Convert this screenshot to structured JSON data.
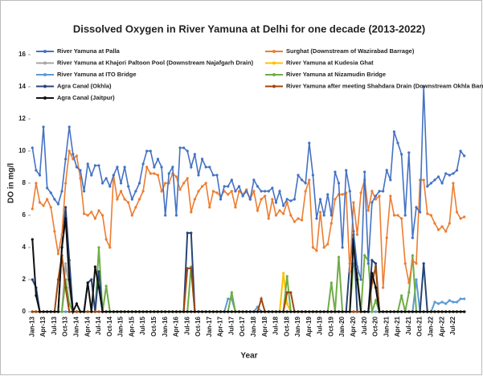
{
  "chart_data": {
    "type": "line",
    "title": "Dissolved Oxygen in River Yamuna at Delhi for one decade (2013-2022)",
    "xlabel": "Year",
    "ylabel": "DO in mg/l",
    "ylim": [
      0,
      16
    ],
    "yticks": [
      0,
      2,
      4,
      6,
      8,
      10,
      12,
      14,
      16
    ],
    "grid": false,
    "categories": [
      "Jan-13",
      null,
      null,
      "Apr-13",
      null,
      null,
      "Jul-13",
      null,
      null,
      "Oct-13",
      null,
      null,
      "Jan-14",
      null,
      null,
      "Apr-14",
      null,
      null,
      "Jul-14",
      null,
      null,
      "Oct-14",
      null,
      null,
      "Jan-15",
      null,
      null,
      "Apr-15",
      null,
      null,
      "Jul-15",
      null,
      null,
      "Oct-15",
      null,
      null,
      "Jan-16",
      null,
      null,
      "Apr-16",
      null,
      null,
      "Jul-16",
      null,
      null,
      "Oct-16",
      null,
      null,
      "Jan-17",
      null,
      null,
      "Apr-17",
      null,
      null,
      "Jul-17",
      null,
      null,
      "Oct-17",
      null,
      null,
      "Jan-18",
      null,
      null,
      "Apr-18",
      null,
      null,
      "Jul-18",
      null,
      null,
      "Oct-18",
      null,
      null,
      "Jan-19",
      null,
      null,
      "Apr-19",
      null,
      null,
      "Jul-19",
      null,
      null,
      "Oct-19",
      null,
      null,
      "Jan-20",
      null,
      null,
      "Apr-20",
      null,
      null,
      "Jul-20",
      null,
      null,
      "Oct-20",
      null,
      null,
      "Jan-21",
      null,
      null,
      "Apr-21",
      null,
      null,
      "Jul-21",
      null,
      null,
      "Oct-21",
      null,
      null,
      "Jan-22",
      null,
      null,
      "Apr-22",
      null,
      null,
      "Jul-22",
      null,
      null,
      null
    ],
    "series": [
      {
        "name": "River Yamuna at Palla",
        "color": "#4472c4",
        "values": [
          10.2,
          8.8,
          8.5,
          11.5,
          7.7,
          7.4,
          7.0,
          6.7,
          7.5,
          9.5,
          11.5,
          9.8,
          9.0,
          8.8,
          7.5,
          9.2,
          8.5,
          9.1,
          9.1,
          8.0,
          8.3,
          7.8,
          8.5,
          9.0,
          8.0,
          9.0,
          7.8,
          7.0,
          7.5,
          8.0,
          9.2,
          10.0,
          10.0,
          9.0,
          9.5,
          9.0,
          6.0,
          8.6,
          9.0,
          6.0,
          10.2,
          10.2,
          10.0,
          9.0,
          9.8,
          8.5,
          9.5,
          9.0,
          9.0,
          8.5,
          8.5,
          7.0,
          7.8,
          7.8,
          8.2,
          7.5,
          7.8,
          7.2,
          7.5,
          7.0,
          8.2,
          7.8,
          7.5,
          7.5,
          7.5,
          7.7,
          6.8,
          7.5,
          6.6,
          7.0,
          6.9,
          7.0,
          8.5,
          8.2,
          8.0,
          10.5,
          8.5,
          5.8,
          7.0,
          6.0,
          7.3,
          6.0,
          8.7,
          8.0,
          4.0,
          8.8,
          7.5,
          5.0,
          2.8,
          2.0,
          8.7,
          3.0,
          6.8,
          7.2,
          7.5,
          7.5,
          8.8,
          8.2,
          11.2,
          10.5,
          9.8,
          6.0,
          9.9,
          4.6,
          6.5,
          6.2,
          14.0,
          7.8,
          8.0,
          8.2,
          8.4,
          8.0,
          8.6,
          8.5,
          8.6,
          8.8,
          10.0,
          9.7
        ]
      },
      {
        "name": "Surghat (Downstream of Wazirabad Barrage)",
        "color": "#ed7d31",
        "values": [
          6.4,
          8.0,
          6.8,
          6.6,
          7.0,
          6.5,
          5.0,
          3.6,
          4.8,
          8.0,
          10.0,
          9.5,
          9.7,
          8.3,
          6.1,
          6.0,
          6.2,
          5.8,
          6.3,
          6.0,
          4.5,
          4.0,
          8.5,
          7.0,
          7.5,
          7.0,
          6.8,
          6.0,
          6.5,
          7.0,
          7.5,
          9.0,
          8.6,
          8.6,
          8.5,
          7.5,
          8.0,
          8.0,
          8.6,
          8.4,
          7.6,
          8.0,
          8.3,
          6.2,
          7.0,
          7.5,
          7.8,
          8.0,
          6.5,
          7.5,
          7.4,
          7.2,
          7.5,
          7.3,
          7.5,
          6.5,
          7.5,
          7.3,
          7.6,
          7.0,
          7.5,
          6.3,
          7.0,
          7.2,
          5.8,
          7.0,
          6.0,
          6.3,
          6.1,
          6.8,
          6.0,
          5.6,
          5.8,
          5.7,
          7.5,
          8.2,
          4.0,
          3.8,
          6.2,
          4.0,
          4.2,
          5.5,
          7.0,
          7.3,
          7.3,
          7.4,
          2.5,
          6.8,
          4.8,
          7.4,
          8.2,
          6.3,
          7.5,
          7.0,
          7.2,
          1.5,
          4.6,
          7.2,
          6.0,
          6.0,
          5.8,
          3.0,
          1.8,
          3.2,
          3.0,
          8.2,
          8.2,
          6.1,
          6.0,
          5.5,
          5.1,
          5.3,
          5.0,
          5.5,
          8.0,
          6.2,
          5.8,
          5.9
        ]
      },
      {
        "name": "River Yamuna at Khajori Paltoon Pool (Downstream Najafgarh Drain)",
        "color": "#a5a5a5",
        "values": [
          0,
          0,
          0,
          0,
          0,
          0,
          0,
          0,
          0,
          3.0,
          1.5,
          0,
          0,
          0,
          0,
          0,
          0,
          0,
          0,
          0,
          0,
          0,
          0,
          0,
          0,
          0,
          0,
          0,
          0,
          0,
          0,
          0,
          0,
          0,
          0,
          0,
          0,
          0,
          0,
          0,
          0,
          0,
          0,
          0,
          0,
          0,
          0,
          0,
          0,
          0,
          0,
          0,
          0,
          0,
          0,
          0,
          0,
          0,
          0,
          0,
          0,
          0,
          0,
          0,
          0,
          0,
          0,
          0,
          0,
          0,
          0,
          0,
          0,
          0,
          0,
          0,
          0,
          0,
          0,
          0,
          0,
          0,
          0,
          0,
          0,
          0,
          0,
          0,
          0,
          0,
          0,
          0,
          0,
          0,
          0,
          0,
          0,
          0,
          0,
          0,
          0,
          0,
          0,
          0,
          0,
          0,
          0,
          0,
          0,
          0,
          0,
          0,
          0,
          0,
          0,
          0,
          0,
          0
        ]
      },
      {
        "name": "River Yamuna at Kudesia Ghat",
        "color": "#ffc000",
        "values": [
          0,
          0,
          0,
          0,
          0,
          0,
          0,
          0,
          0,
          0,
          0,
          0,
          0,
          0,
          0,
          0,
          0,
          0,
          0,
          0,
          0,
          0,
          0,
          0,
          0,
          0,
          0,
          0,
          0,
          0,
          0,
          0,
          0,
          0,
          0,
          0,
          0,
          0,
          0,
          0,
          0,
          0,
          0,
          0,
          0,
          0,
          0,
          0,
          0,
          0,
          0,
          0,
          0,
          0,
          0,
          0,
          0,
          0,
          0,
          0,
          0,
          0,
          0,
          0,
          0,
          0,
          0,
          0,
          2.4,
          0.5,
          0,
          0,
          0,
          0,
          0,
          0,
          0,
          0,
          0,
          0,
          0,
          0,
          0,
          0,
          0,
          0,
          0,
          0,
          0,
          0,
          0,
          0,
          0,
          0,
          0,
          0,
          0,
          0,
          0,
          0,
          0,
          0,
          0,
          0,
          0,
          0,
          0,
          0,
          0,
          0,
          0,
          0,
          0,
          0,
          0,
          0,
          0,
          0
        ]
      },
      {
        "name": "River Yamuna at ITO Bridge",
        "color": "#5b9bd5",
        "values": [
          0,
          0,
          0,
          0,
          0,
          0,
          0,
          0,
          0,
          0,
          0,
          0,
          0,
          0,
          0,
          0,
          0,
          0,
          0,
          0,
          0,
          0,
          0,
          0,
          0,
          0,
          0,
          0,
          0,
          0,
          0,
          0,
          0,
          0,
          0,
          0,
          0,
          0,
          0,
          0,
          0,
          0,
          0,
          0,
          0,
          0,
          0,
          0,
          0,
          0,
          0,
          0,
          0,
          0.8,
          0.8,
          0,
          0,
          0,
          0,
          0,
          0,
          0.3,
          0,
          0,
          0,
          0,
          0,
          0,
          0,
          0,
          0,
          0,
          0,
          0,
          0,
          0,
          0,
          0,
          0,
          0,
          0,
          0,
          0,
          0,
          0,
          0,
          0,
          0,
          0,
          0,
          0,
          0,
          0,
          0,
          0,
          0,
          0,
          0,
          0,
          0,
          0,
          0,
          0,
          0,
          2.0,
          0,
          0,
          0,
          0,
          0.6,
          0.5,
          0.6,
          0.5,
          0.7,
          0.6,
          0.6,
          0.8,
          0.8
        ]
      },
      {
        "name": "River Yamuna at Nizamudin Bridge",
        "color": "#70ad47",
        "values": [
          0,
          0,
          0,
          0,
          0,
          0,
          0,
          0,
          0,
          2.0,
          0.5,
          0,
          0,
          0,
          0,
          0,
          0,
          0,
          4.0,
          0,
          1.6,
          0,
          0,
          0,
          0,
          0,
          0,
          0,
          0,
          0,
          0,
          0,
          0,
          0,
          0,
          0,
          0,
          0,
          0,
          0,
          0,
          0,
          0,
          2.8,
          0,
          0,
          0,
          0,
          0,
          0,
          0,
          0,
          0,
          0,
          1.2,
          0,
          0,
          0,
          0,
          0,
          0,
          0,
          0,
          0,
          0,
          0,
          0,
          0,
          0,
          2.2,
          0,
          0,
          0,
          0,
          0,
          0,
          0,
          0,
          0,
          0,
          0,
          1.8,
          0,
          3.4,
          0,
          0,
          0,
          3.0,
          2.4,
          0,
          3.5,
          3.2,
          0,
          0.7,
          0,
          0,
          0,
          0,
          0,
          0,
          1.0,
          0,
          1.2,
          3.5,
          0,
          0,
          0,
          0,
          0,
          0,
          0,
          0,
          0,
          0,
          0,
          0,
          0,
          0
        ]
      },
      {
        "name": "Agra Canal (Okhla)",
        "color": "#264478",
        "values": [
          2.0,
          1.5,
          0,
          0,
          0,
          0,
          0,
          0,
          4.0,
          6.5,
          3.2,
          0,
          0,
          0,
          0,
          1.8,
          2.0,
          0,
          2.5,
          0,
          0,
          0,
          0,
          0,
          0,
          0,
          0,
          0,
          0,
          0,
          0,
          0,
          0,
          0,
          0,
          0,
          0,
          0,
          0,
          0,
          0,
          0,
          4.9,
          4.9,
          0,
          0,
          0,
          0,
          0,
          0,
          0,
          0,
          0,
          0,
          0,
          0,
          0,
          0,
          0,
          0,
          0,
          0,
          0,
          0,
          0,
          0,
          0,
          0,
          0,
          0,
          0,
          0,
          0,
          0,
          0,
          0,
          0,
          0,
          0,
          0,
          0,
          0,
          0,
          0,
          0,
          0,
          3.0,
          4.8,
          0,
          0,
          0,
          0,
          3.2,
          3.0,
          0,
          0,
          0,
          0,
          0,
          0,
          0,
          0,
          0,
          0,
          0,
          0,
          3.0,
          0,
          0,
          0,
          0,
          0,
          0,
          0,
          0,
          0,
          0,
          0
        ]
      },
      {
        "name": "River Yamuna after meeting Shahdara Drain (Downstream Okhla Barrage)",
        "color": "#9e480e",
        "values": [
          0,
          0,
          0,
          0,
          0,
          0,
          0,
          2.0,
          3.5,
          1.5,
          0,
          0,
          0,
          0,
          0,
          0,
          0,
          0,
          0,
          0,
          0,
          0,
          0,
          0,
          0,
          0,
          0,
          0,
          0,
          0,
          0,
          0,
          0,
          0,
          0,
          0,
          0,
          0,
          0,
          0,
          0,
          0,
          2.7,
          2.7,
          0,
          0,
          0,
          0,
          0,
          0,
          0,
          0,
          0,
          0,
          0,
          0,
          0,
          0,
          0,
          0,
          0,
          0,
          0.8,
          0,
          0,
          0,
          0,
          0,
          0,
          1.2,
          1.2,
          0,
          0,
          0,
          0,
          0,
          0,
          0,
          0,
          0,
          0,
          0,
          0,
          0,
          0,
          0,
          0,
          0,
          0,
          0,
          0,
          0,
          1.8,
          2.8,
          0,
          0,
          0,
          0,
          0,
          0,
          0,
          0,
          0,
          0,
          0,
          0,
          0,
          0,
          0,
          0,
          0,
          0,
          0,
          0,
          0,
          0,
          0,
          0
        ]
      },
      {
        "name": "Agra Canal (Jaitpur)",
        "color": "#111111",
        "values": [
          4.5,
          1.0,
          0,
          0,
          0,
          0,
          0,
          0,
          4.0,
          5.8,
          2.0,
          0,
          0.5,
          0,
          0,
          1.8,
          0,
          2.8,
          1.5,
          0,
          0,
          0,
          0,
          0,
          0,
          0,
          0,
          0,
          0,
          0,
          0,
          0,
          0,
          0,
          0,
          0,
          0,
          0,
          0,
          0,
          0,
          0,
          0,
          0,
          0,
          0,
          0,
          0,
          0,
          0,
          0,
          0,
          0,
          0,
          0,
          0,
          0,
          0,
          0,
          0,
          0,
          0,
          0,
          0,
          0,
          0,
          0,
          0,
          0,
          0,
          0,
          0,
          0,
          0,
          0,
          0,
          0,
          0,
          0,
          0,
          0,
          0,
          0,
          0,
          0,
          0,
          0,
          4.5,
          2.0,
          0,
          0,
          0,
          2.4,
          1.5,
          0,
          0,
          0,
          0,
          0,
          0,
          0,
          0,
          0,
          0,
          0,
          0,
          0,
          0,
          0,
          0,
          0,
          0,
          0,
          0,
          0,
          0,
          0,
          0
        ]
      }
    ]
  }
}
